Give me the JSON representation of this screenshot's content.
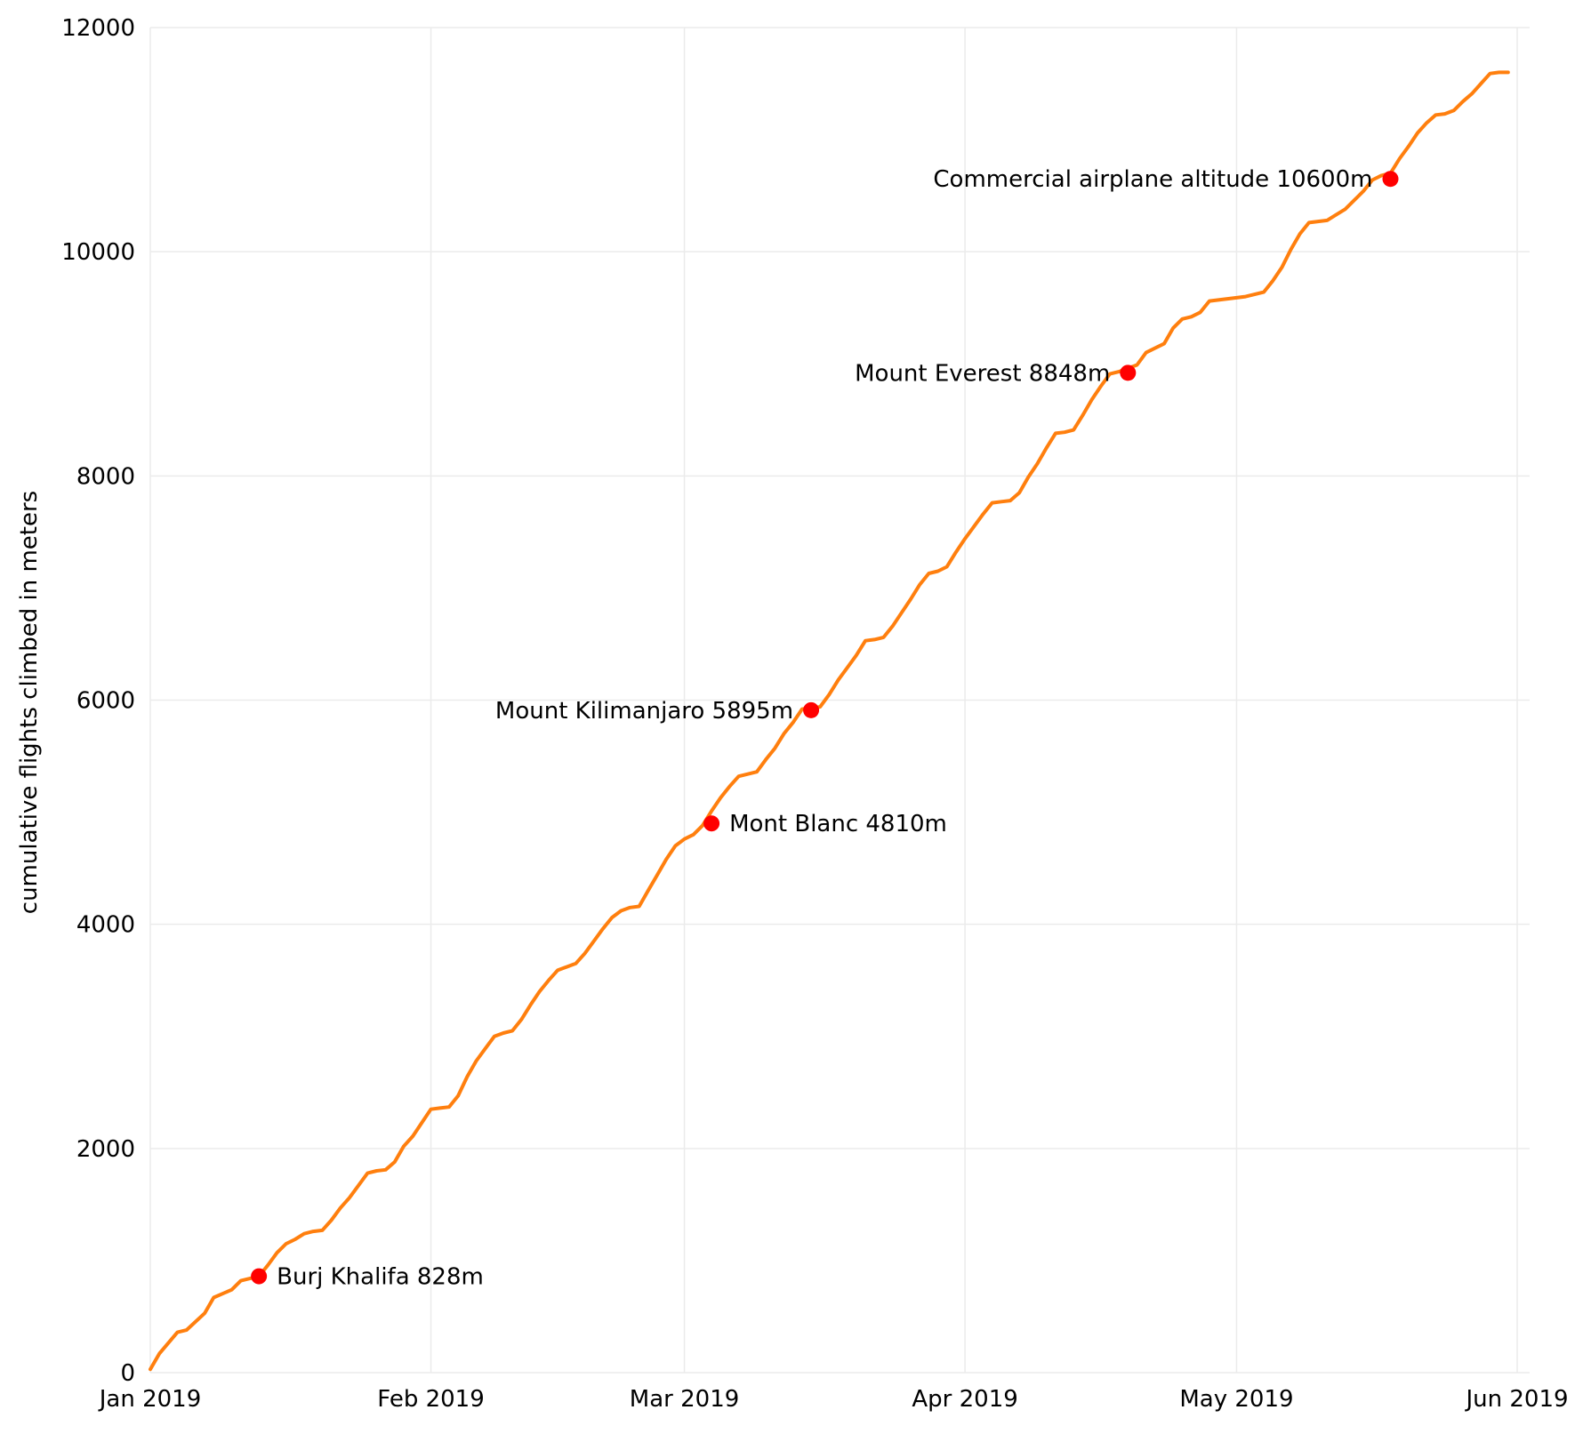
{
  "chart_data": {
    "type": "line",
    "title": "",
    "xlabel": "",
    "ylabel": "cumulative flights climbed in meters",
    "x_ticks": [
      "Jan 2019",
      "Feb 2019",
      "Mar 2019",
      "Apr 2019",
      "May 2019",
      "Jun 2019"
    ],
    "y_ticks": [
      "0",
      "2000",
      "4000",
      "6000",
      "8000",
      "10000",
      "12000"
    ],
    "xlim": [
      "2019-01-01",
      "2019-06-01"
    ],
    "ylim": [
      0,
      12000
    ],
    "grid": true,
    "colors": {
      "line": "#ff7f0e",
      "markers": "#ff0000",
      "grid": "#ebebeb"
    },
    "series": [
      {
        "x": [
          "2019-01-01",
          "2019-01-02",
          "2019-01-04",
          "2019-01-05",
          "2019-01-07",
          "2019-01-08",
          "2019-01-10",
          "2019-01-11",
          "2019-01-13",
          "2019-01-14",
          "2019-01-15",
          "2019-01-16",
          "2019-01-17",
          "2019-01-18",
          "2019-01-19",
          "2019-01-20",
          "2019-01-21",
          "2019-01-22",
          "2019-01-23",
          "2019-01-24",
          "2019-01-25",
          "2019-01-26",
          "2019-01-27",
          "2019-01-28",
          "2019-01-29",
          "2019-01-30",
          "2019-01-31",
          "2019-02-01",
          "2019-02-02",
          "2019-02-03",
          "2019-02-04",
          "2019-02-05",
          "2019-02-06",
          "2019-02-07",
          "2019-02-08",
          "2019-02-09",
          "2019-02-10",
          "2019-02-11",
          "2019-02-12",
          "2019-02-13",
          "2019-02-14",
          "2019-02-15",
          "2019-02-16",
          "2019-02-17",
          "2019-02-18",
          "2019-02-19",
          "2019-02-20",
          "2019-02-21",
          "2019-02-22",
          "2019-02-23",
          "2019-02-24",
          "2019-02-25",
          "2019-02-26",
          "2019-02-27",
          "2019-02-28",
          "2019-03-01",
          "2019-03-02",
          "2019-03-03",
          "2019-03-04",
          "2019-03-05",
          "2019-03-06",
          "2019-03-07",
          "2019-03-08",
          "2019-03-09",
          "2019-03-10",
          "2019-03-11",
          "2019-03-12",
          "2019-03-13",
          "2019-03-14",
          "2019-03-15",
          "2019-03-16",
          "2019-03-17",
          "2019-03-18",
          "2019-03-19",
          "2019-03-20",
          "2019-03-21",
          "2019-03-22",
          "2019-03-23",
          "2019-03-24",
          "2019-03-25",
          "2019-03-26",
          "2019-03-27",
          "2019-03-28",
          "2019-03-29",
          "2019-03-30",
          "2019-03-31",
          "2019-04-01",
          "2019-04-02",
          "2019-04-03",
          "2019-04-04",
          "2019-04-05",
          "2019-04-06",
          "2019-04-07",
          "2019-04-08",
          "2019-04-09",
          "2019-04-10",
          "2019-04-11",
          "2019-04-12",
          "2019-04-13",
          "2019-04-14",
          "2019-04-15",
          "2019-04-16",
          "2019-04-17",
          "2019-04-18",
          "2019-04-19",
          "2019-04-20",
          "2019-04-21",
          "2019-04-22",
          "2019-04-23",
          "2019-04-24",
          "2019-04-25",
          "2019-04-26",
          "2019-04-27",
          "2019-04-28",
          "2019-04-29",
          "2019-04-30",
          "2019-05-01",
          "2019-05-02",
          "2019-05-03",
          "2019-05-04",
          "2019-05-05",
          "2019-05-06",
          "2019-05-07",
          "2019-05-08",
          "2019-05-09",
          "2019-05-10",
          "2019-05-11",
          "2019-05-12",
          "2019-05-13",
          "2019-05-14",
          "2019-05-15",
          "2019-05-16",
          "2019-05-17",
          "2019-05-18",
          "2019-05-19",
          "2019-05-20",
          "2019-05-21",
          "2019-05-22",
          "2019-05-23",
          "2019-05-24",
          "2019-05-25",
          "2019-05-26",
          "2019-05-27",
          "2019-05-28",
          "2019-05-29",
          "2019-05-30",
          "2019-05-31"
        ],
        "y": [
          30,
          170,
          360,
          380,
          530,
          670,
          740,
          820,
          860,
          960,
          1070,
          1150,
          1190,
          1240,
          1260,
          1270,
          1360,
          1470,
          1560,
          1670,
          1780,
          1800,
          1810,
          1880,
          2020,
          2110,
          2230,
          2350,
          2360,
          2370,
          2470,
          2640,
          2780,
          2890,
          3000,
          3030,
          3050,
          3150,
          3280,
          3400,
          3500,
          3590,
          3620,
          3650,
          3740,
          3850,
          3960,
          4060,
          4120,
          4150,
          4160,
          4300,
          4440,
          4580,
          4700,
          4760,
          4800,
          4880,
          5010,
          5130,
          5230,
          5320,
          5340,
          5360,
          5470,
          5570,
          5700,
          5800,
          5920,
          5930,
          5940,
          6050,
          6180,
          6290,
          6400,
          6530,
          6540,
          6560,
          6660,
          6780,
          6900,
          7030,
          7130,
          7150,
          7190,
          7320,
          7440,
          7550,
          7660,
          7760,
          7770,
          7780,
          7850,
          7990,
          8110,
          8250,
          8380,
          8390,
          8410,
          8540,
          8680,
          8800,
          8910,
          8930,
          8960,
          8990,
          9100,
          9140,
          9180,
          9320,
          9400,
          9420,
          9460,
          9560,
          9570,
          9580,
          9590,
          9600,
          9620,
          9640,
          9740,
          9860,
          10020,
          10160,
          10260,
          10270,
          10280,
          10330,
          10380,
          10460,
          10540,
          10640,
          10680,
          10700,
          10830,
          10940,
          11060,
          11150,
          11220,
          11230,
          11260,
          11340,
          11410,
          11500,
          11590,
          11600,
          11600
        ]
      }
    ],
    "markers": [
      {
        "x": "2019-01-13",
        "y": 860,
        "label": "Burj Khalifa 828m",
        "side": "right"
      },
      {
        "x": "2019-03-04",
        "y": 4900,
        "label": "Mont Blanc 4810m",
        "side": "right"
      },
      {
        "x": "2019-03-15",
        "y": 5910,
        "label": "Mount Kilimanjaro 5895m",
        "side": "left"
      },
      {
        "x": "2019-04-19",
        "y": 8920,
        "label": "Mount Everest 8848m",
        "side": "left"
      },
      {
        "x": "2019-05-18",
        "y": 10650,
        "label": "Commercial airplane altitude 10600m",
        "side": "left"
      }
    ]
  }
}
